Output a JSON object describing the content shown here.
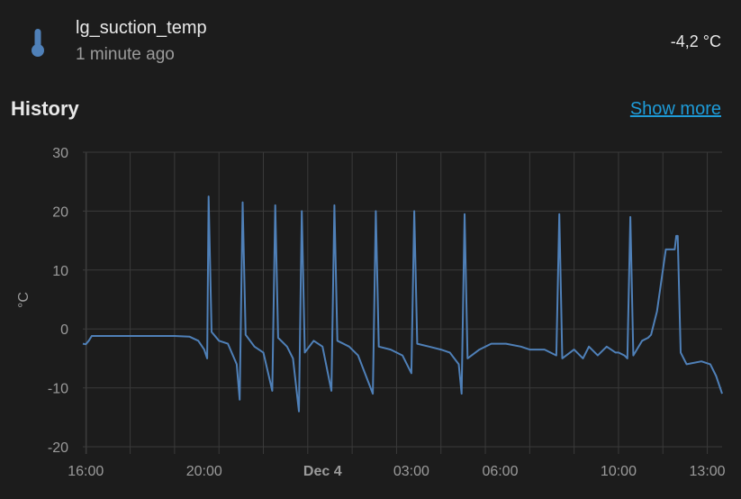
{
  "entity": {
    "name": "lg_suction_temp",
    "last_changed": "1 minute ago",
    "state": "-4,2 °C",
    "icon": "thermometer-icon"
  },
  "history": {
    "title": "History",
    "show_more": "Show more"
  },
  "colors": {
    "background": "#1c1c1c",
    "line": "#4f80b8",
    "link": "#1e9bd8",
    "grid": "#3a3a3a"
  },
  "chart_data": {
    "type": "line",
    "ylabel": "°C",
    "ylim": [
      -20,
      30
    ],
    "yticks": [
      "30",
      "20",
      "10",
      "0",
      "-10",
      "-20"
    ],
    "xlim": [
      15.9,
      37.5
    ],
    "xticks": [
      {
        "label": "16:00",
        "x": 16,
        "bold": false
      },
      {
        "label": "20:00",
        "x": 20,
        "bold": false
      },
      {
        "label": "Dec 4",
        "x": 24,
        "bold": true
      },
      {
        "label": "03:00",
        "x": 27,
        "bold": false
      },
      {
        "label": "06:00",
        "x": 30,
        "bold": false
      },
      {
        "label": "10:00",
        "x": 34,
        "bold": false
      },
      {
        "label": "13:00",
        "x": 37,
        "bold": false
      }
    ],
    "series": [
      {
        "points": [
          [
            15.9,
            -2.5
          ],
          [
            16.0,
            -2.6
          ],
          [
            16.1,
            -2.0
          ],
          [
            16.2,
            -1.2
          ],
          [
            17.0,
            -1.2
          ],
          [
            18.0,
            -1.2
          ],
          [
            19.0,
            -1.2
          ],
          [
            19.5,
            -1.3
          ],
          [
            19.8,
            -2.0
          ],
          [
            20.0,
            -3.5
          ],
          [
            20.1,
            -5.0
          ],
          [
            20.15,
            22.5
          ],
          [
            20.25,
            -0.5
          ],
          [
            20.5,
            -2.0
          ],
          [
            20.8,
            -2.5
          ],
          [
            21.1,
            -6.0
          ],
          [
            21.2,
            -12.0
          ],
          [
            21.3,
            21.5
          ],
          [
            21.4,
            -1.0
          ],
          [
            21.7,
            -3.0
          ],
          [
            22.0,
            -4.0
          ],
          [
            22.3,
            -10.5
          ],
          [
            22.4,
            21.0
          ],
          [
            22.5,
            -1.5
          ],
          [
            22.8,
            -3.0
          ],
          [
            23.0,
            -5.0
          ],
          [
            23.2,
            -14.0
          ],
          [
            23.3,
            20.0
          ],
          [
            23.4,
            -4.0
          ],
          [
            23.7,
            -2.0
          ],
          [
            24.0,
            -3.0
          ],
          [
            24.3,
            -10.5
          ],
          [
            24.4,
            21.0
          ],
          [
            24.5,
            -2.0
          ],
          [
            24.9,
            -3.0
          ],
          [
            25.2,
            -4.5
          ],
          [
            25.7,
            -11.0
          ],
          [
            25.8,
            20.0
          ],
          [
            25.9,
            -3.0
          ],
          [
            26.3,
            -3.5
          ],
          [
            26.7,
            -4.5
          ],
          [
            27.0,
            -7.5
          ],
          [
            27.1,
            20.0
          ],
          [
            27.2,
            -2.5
          ],
          [
            27.6,
            -3.0
          ],
          [
            28.0,
            -3.5
          ],
          [
            28.3,
            -4.0
          ],
          [
            28.6,
            -6.0
          ],
          [
            28.7,
            -11.0
          ],
          [
            28.8,
            19.5
          ],
          [
            28.9,
            -5.0
          ],
          [
            29.3,
            -3.5
          ],
          [
            29.7,
            -2.5
          ],
          [
            30.2,
            -2.5
          ],
          [
            30.7,
            -3.0
          ],
          [
            31.0,
            -3.5
          ],
          [
            31.5,
            -3.5
          ],
          [
            31.9,
            -4.5
          ],
          [
            32.0,
            19.5
          ],
          [
            32.1,
            -5.0
          ],
          [
            32.5,
            -3.5
          ],
          [
            32.8,
            -5.0
          ],
          [
            33.0,
            -3.0
          ],
          [
            33.3,
            -4.5
          ],
          [
            33.6,
            -3.0
          ],
          [
            33.9,
            -4.0
          ],
          [
            34.0,
            -4.0
          ],
          [
            34.2,
            -4.5
          ],
          [
            34.3,
            -5.0
          ],
          [
            34.4,
            19.0
          ],
          [
            34.5,
            -4.5
          ],
          [
            34.8,
            -2.0
          ],
          [
            35.0,
            -1.5
          ],
          [
            35.1,
            -1.0
          ],
          [
            35.3,
            3.0
          ],
          [
            35.6,
            13.5
          ],
          [
            35.9,
            13.5
          ],
          [
            35.95,
            15.8
          ],
          [
            36.0,
            15.8
          ],
          [
            36.1,
            -4.0
          ],
          [
            36.3,
            -6.0
          ],
          [
            36.8,
            -5.5
          ],
          [
            37.1,
            -6.0
          ],
          [
            37.3,
            -8.0
          ],
          [
            37.5,
            -11.0
          ]
        ]
      }
    ]
  }
}
